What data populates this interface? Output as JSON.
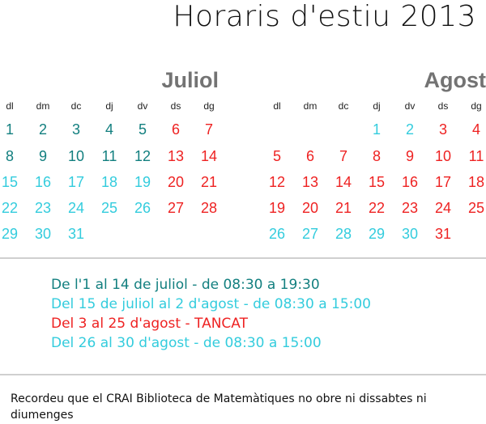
{
  "title": "Horaris d'estiu 2013",
  "colors": {
    "teal": "#127f7f",
    "cyan": "#33ccdd",
    "red": "#ee2222",
    "month_header": "#737373"
  },
  "weekdays": [
    "dl",
    "dm",
    "dc",
    "dj",
    "dv",
    "ds",
    "dg"
  ],
  "months": [
    {
      "name": "Juliol",
      "weeks": [
        [
          {
            "d": "1",
            "c": "teal"
          },
          {
            "d": "2",
            "c": "teal"
          },
          {
            "d": "3",
            "c": "teal"
          },
          {
            "d": "4",
            "c": "teal"
          },
          {
            "d": "5",
            "c": "teal"
          },
          {
            "d": "6",
            "c": "red"
          },
          {
            "d": "7",
            "c": "red"
          }
        ],
        [
          {
            "d": "8",
            "c": "teal"
          },
          {
            "d": "9",
            "c": "teal"
          },
          {
            "d": "10",
            "c": "teal"
          },
          {
            "d": "11",
            "c": "teal"
          },
          {
            "d": "12",
            "c": "teal"
          },
          {
            "d": "13",
            "c": "red"
          },
          {
            "d": "14",
            "c": "red"
          }
        ],
        [
          {
            "d": "15",
            "c": "cyan"
          },
          {
            "d": "16",
            "c": "cyan"
          },
          {
            "d": "17",
            "c": "cyan"
          },
          {
            "d": "18",
            "c": "cyan"
          },
          {
            "d": "19",
            "c": "cyan"
          },
          {
            "d": "20",
            "c": "red"
          },
          {
            "d": "21",
            "c": "red"
          }
        ],
        [
          {
            "d": "22",
            "c": "cyan"
          },
          {
            "d": "23",
            "c": "cyan"
          },
          {
            "d": "24",
            "c": "cyan"
          },
          {
            "d": "25",
            "c": "cyan"
          },
          {
            "d": "26",
            "c": "cyan"
          },
          {
            "d": "27",
            "c": "red"
          },
          {
            "d": "28",
            "c": "red"
          }
        ],
        [
          {
            "d": "29",
            "c": "cyan"
          },
          {
            "d": "30",
            "c": "cyan"
          },
          {
            "d": "31",
            "c": "cyan"
          },
          null,
          null,
          null,
          null
        ]
      ]
    },
    {
      "name": "Agost",
      "weeks": [
        [
          null,
          null,
          null,
          {
            "d": "1",
            "c": "cyan"
          },
          {
            "d": "2",
            "c": "cyan"
          },
          {
            "d": "3",
            "c": "red"
          },
          {
            "d": "4",
            "c": "red"
          }
        ],
        [
          {
            "d": "5",
            "c": "red"
          },
          {
            "d": "6",
            "c": "red"
          },
          {
            "d": "7",
            "c": "red"
          },
          {
            "d": "8",
            "c": "red"
          },
          {
            "d": "9",
            "c": "red"
          },
          {
            "d": "10",
            "c": "red"
          },
          {
            "d": "11",
            "c": "red"
          }
        ],
        [
          {
            "d": "12",
            "c": "red"
          },
          {
            "d": "13",
            "c": "red"
          },
          {
            "d": "14",
            "c": "red"
          },
          {
            "d": "15",
            "c": "red"
          },
          {
            "d": "16",
            "c": "red"
          },
          {
            "d": "17",
            "c": "red"
          },
          {
            "d": "18",
            "c": "red"
          }
        ],
        [
          {
            "d": "19",
            "c": "red"
          },
          {
            "d": "20",
            "c": "red"
          },
          {
            "d": "21",
            "c": "red"
          },
          {
            "d": "22",
            "c": "red"
          },
          {
            "d": "23",
            "c": "red"
          },
          {
            "d": "24",
            "c": "red"
          },
          {
            "d": "25",
            "c": "red"
          }
        ],
        [
          {
            "d": "26",
            "c": "cyan"
          },
          {
            "d": "27",
            "c": "cyan"
          },
          {
            "d": "28",
            "c": "cyan"
          },
          {
            "d": "29",
            "c": "cyan"
          },
          {
            "d": "30",
            "c": "cyan"
          },
          {
            "d": "31",
            "c": "red"
          },
          null
        ]
      ]
    }
  ],
  "legend": [
    {
      "text": "De l'1 al 14 de juliol - de 08:30 a 19:30",
      "color": "teal"
    },
    {
      "text": "Del 15 de juliol al 2 d'agost - de 08:30 a 15:00",
      "color": "cyan"
    },
    {
      "text": "Del 3 al 25 d'agost - TANCAT",
      "color": "red"
    },
    {
      "text": "Del 26 al 30 d'agost - de 08:30 a 15:00",
      "color": "cyan"
    }
  ],
  "note": "Recordeu que el CRAI Biblioteca de Matemàtiques no obre ni dissabtes ni diumenges"
}
